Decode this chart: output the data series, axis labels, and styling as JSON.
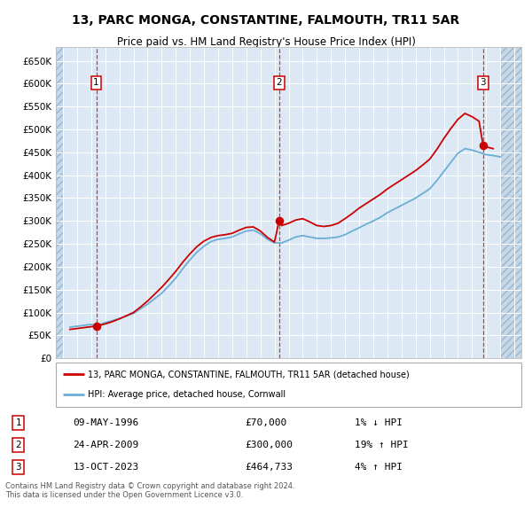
{
  "title": "13, PARC MONGA, CONSTANTINE, FALMOUTH, TR11 5AR",
  "subtitle": "Price paid vs. HM Land Registry's House Price Index (HPI)",
  "transactions": [
    {
      "date": 1996.36,
      "price": 70000,
      "label": "1"
    },
    {
      "date": 2009.32,
      "price": 300000,
      "label": "2"
    },
    {
      "date": 2023.79,
      "price": 464733,
      "label": "3"
    }
  ],
  "hpi_line_color": "#6baed6",
  "price_line_color": "#cc0000",
  "point_color": "#cc0000",
  "background_plot": "#dce9f5",
  "background_hatch": "#c5d8ea",
  "grid_color": "#ffffff",
  "dashed_color": "#cc0000",
  "ylim": [
    0,
    680000
  ],
  "yticks": [
    0,
    50000,
    100000,
    150000,
    200000,
    250000,
    300000,
    350000,
    400000,
    450000,
    500000,
    550000,
    600000,
    650000
  ],
  "xlim": [
    1993.5,
    2026.5
  ],
  "xticks": [
    1994,
    1995,
    1996,
    1997,
    1998,
    1999,
    2000,
    2001,
    2002,
    2003,
    2004,
    2005,
    2006,
    2007,
    2008,
    2009,
    2010,
    2011,
    2012,
    2013,
    2014,
    2015,
    2016,
    2017,
    2018,
    2019,
    2020,
    2021,
    2022,
    2023,
    2024,
    2025,
    2026
  ],
  "legend_entries": [
    {
      "label": "13, PARC MONGA, CONSTANTINE, FALMOUTH, TR11 5AR (detached house)",
      "color": "#cc0000"
    },
    {
      "label": "HPI: Average price, detached house, Cornwall",
      "color": "#6baed6"
    }
  ],
  "table_rows": [
    {
      "num": "1",
      "date": "09-MAY-1996",
      "price": "£70,000",
      "hpi": "1% ↓ HPI"
    },
    {
      "num": "2",
      "date": "24-APR-2009",
      "price": "£300,000",
      "hpi": "19% ↑ HPI"
    },
    {
      "num": "3",
      "date": "13-OCT-2023",
      "price": "£464,733",
      "hpi": "4% ↑ HPI"
    }
  ],
  "footer": "Contains HM Land Registry data © Crown copyright and database right 2024.\nThis data is licensed under the Open Government Licence v3.0.",
  "hpi_data": [
    [
      1994.5,
      68000
    ],
    [
      1995.0,
      70000
    ],
    [
      1995.5,
      72000
    ],
    [
      1996.0,
      74000
    ],
    [
      1996.36,
      71000
    ],
    [
      1997.0,
      78000
    ],
    [
      1997.5,
      82000
    ],
    [
      1998.0,
      87000
    ],
    [
      1998.5,
      92000
    ],
    [
      1999.0,
      98000
    ],
    [
      1999.5,
      108000
    ],
    [
      2000.0,
      118000
    ],
    [
      2000.5,
      130000
    ],
    [
      2001.0,
      142000
    ],
    [
      2001.5,
      158000
    ],
    [
      2002.0,
      175000
    ],
    [
      2002.5,
      196000
    ],
    [
      2003.0,
      215000
    ],
    [
      2003.5,
      232000
    ],
    [
      2004.0,
      245000
    ],
    [
      2004.5,
      255000
    ],
    [
      2005.0,
      260000
    ],
    [
      2005.5,
      262000
    ],
    [
      2006.0,
      265000
    ],
    [
      2006.5,
      272000
    ],
    [
      2007.0,
      278000
    ],
    [
      2007.5,
      280000
    ],
    [
      2008.0,
      272000
    ],
    [
      2008.5,
      260000
    ],
    [
      2009.0,
      252000
    ],
    [
      2009.32,
      252000
    ],
    [
      2009.5,
      252000
    ],
    [
      2010.0,
      258000
    ],
    [
      2010.5,
      265000
    ],
    [
      2011.0,
      268000
    ],
    [
      2011.5,
      265000
    ],
    [
      2012.0,
      262000
    ],
    [
      2012.5,
      262000
    ],
    [
      2013.0,
      263000
    ],
    [
      2013.5,
      265000
    ],
    [
      2014.0,
      270000
    ],
    [
      2014.5,
      278000
    ],
    [
      2015.0,
      285000
    ],
    [
      2015.5,
      293000
    ],
    [
      2016.0,
      300000
    ],
    [
      2016.5,
      308000
    ],
    [
      2017.0,
      318000
    ],
    [
      2017.5,
      326000
    ],
    [
      2018.0,
      334000
    ],
    [
      2018.5,
      342000
    ],
    [
      2019.0,
      350000
    ],
    [
      2019.5,
      360000
    ],
    [
      2020.0,
      370000
    ],
    [
      2020.5,
      388000
    ],
    [
      2021.0,
      408000
    ],
    [
      2021.5,
      428000
    ],
    [
      2022.0,
      448000
    ],
    [
      2022.5,
      458000
    ],
    [
      2023.0,
      455000
    ],
    [
      2023.5,
      450000
    ],
    [
      2023.79,
      447000
    ],
    [
      2024.0,
      445000
    ],
    [
      2024.5,
      443000
    ],
    [
      2025.0,
      440000
    ]
  ],
  "price_hpi_data": [
    [
      1994.5,
      63000
    ],
    [
      1995.0,
      65000
    ],
    [
      1995.5,
      67000
    ],
    [
      1996.0,
      69000
    ],
    [
      1996.36,
      70000
    ],
    [
      1997.0,
      75000
    ],
    [
      1997.5,
      80000
    ],
    [
      1998.0,
      86000
    ],
    [
      1998.5,
      93000
    ],
    [
      1999.0,
      100000
    ],
    [
      1999.5,
      112000
    ],
    [
      2000.0,
      125000
    ],
    [
      2000.5,
      140000
    ],
    [
      2001.0,
      155000
    ],
    [
      2001.5,
      172000
    ],
    [
      2002.0,
      190000
    ],
    [
      2002.5,
      210000
    ],
    [
      2003.0,
      228000
    ],
    [
      2003.5,
      244000
    ],
    [
      2004.0,
      256000
    ],
    [
      2004.5,
      264000
    ],
    [
      2005.0,
      268000
    ],
    [
      2005.5,
      270000
    ],
    [
      2006.0,
      273000
    ],
    [
      2006.5,
      280000
    ],
    [
      2007.0,
      286000
    ],
    [
      2007.5,
      287000
    ],
    [
      2008.0,
      278000
    ],
    [
      2008.5,
      264000
    ],
    [
      2009.0,
      254000
    ],
    [
      2009.32,
      300000
    ],
    [
      2009.5,
      290000
    ],
    [
      2010.0,
      295000
    ],
    [
      2010.5,
      302000
    ],
    [
      2011.0,
      305000
    ],
    [
      2011.5,
      298000
    ],
    [
      2012.0,
      290000
    ],
    [
      2012.5,
      288000
    ],
    [
      2013.0,
      290000
    ],
    [
      2013.5,
      295000
    ],
    [
      2014.0,
      305000
    ],
    [
      2014.5,
      316000
    ],
    [
      2015.0,
      328000
    ],
    [
      2015.5,
      338000
    ],
    [
      2016.0,
      348000
    ],
    [
      2016.5,
      358000
    ],
    [
      2017.0,
      370000
    ],
    [
      2017.5,
      380000
    ],
    [
      2018.0,
      390000
    ],
    [
      2018.5,
      400000
    ],
    [
      2019.0,
      410000
    ],
    [
      2019.5,
      422000
    ],
    [
      2020.0,
      435000
    ],
    [
      2020.5,
      456000
    ],
    [
      2021.0,
      480000
    ],
    [
      2021.5,
      502000
    ],
    [
      2022.0,
      522000
    ],
    [
      2022.5,
      535000
    ],
    [
      2023.0,
      528000
    ],
    [
      2023.5,
      518000
    ],
    [
      2023.79,
      464733
    ],
    [
      2024.0,
      462000
    ],
    [
      2024.5,
      458000
    ]
  ]
}
